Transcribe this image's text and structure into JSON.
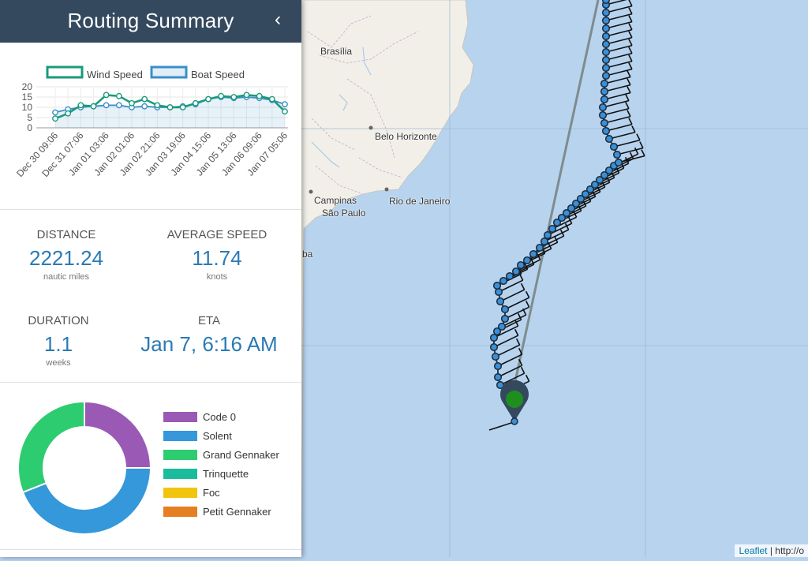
{
  "panel": {
    "title": "Routing Summary",
    "collapse_icon": "‹"
  },
  "chart_data": {
    "type": "line",
    "legend": [
      "Wind Speed",
      "Boat Speed"
    ],
    "series": [
      {
        "name": "Wind Speed",
        "color": "#1a9a7a",
        "values": [
          4.5,
          7,
          11,
          10.5,
          16,
          15.5,
          12,
          14,
          11,
          10,
          10,
          12,
          14,
          15.5,
          15,
          16,
          15.5,
          14,
          8
        ]
      },
      {
        "name": "Boat Speed",
        "color": "#3a8fc8",
        "values": [
          7.5,
          9,
          10,
          10.5,
          11,
          11,
          10,
          10.5,
          10,
          10,
          10.5,
          11.5,
          14,
          15,
          14.5,
          15,
          14.5,
          13.5,
          11.5
        ]
      }
    ],
    "x_tick_labels": [
      "Dec 30 09:06",
      "Dec 31 07:06",
      "Jan 01 03:06",
      "Jan 02 01:06",
      "Jan 02 21:06",
      "Jan 03 19:06",
      "Jan 04 15:06",
      "Jan 05 13:06",
      "Jan 06 09:06",
      "Jan 07 05:06"
    ],
    "y_ticks": [
      0,
      5,
      10,
      15,
      20
    ],
    "ylim": [
      0,
      20
    ],
    "grid": true,
    "legend_position": "top"
  },
  "stats": {
    "distance": {
      "label": "DISTANCE",
      "value": "2221.24",
      "unit": "nautic miles"
    },
    "average_speed": {
      "label": "AVERAGE SPEED",
      "value": "11.74",
      "unit": "knots"
    },
    "duration": {
      "label": "DURATION",
      "value": "1.1",
      "unit": "weeks"
    },
    "eta": {
      "label": "ETA",
      "value": "Jan 7, 6:16 AM"
    }
  },
  "sails": {
    "items": [
      {
        "label": "Code 0",
        "color": "#9b59b6",
        "value": 25
      },
      {
        "label": "Solent",
        "color": "#3498db",
        "value": 44
      },
      {
        "label": "Grand Gennaker",
        "color": "#2ecc71",
        "value": 31
      },
      {
        "label": "Trinquette",
        "color": "#1abc9c",
        "value": 0
      },
      {
        "label": "Foc",
        "color": "#f1c40f",
        "value": 0
      },
      {
        "label": "Petit Gennaker",
        "color": "#e67e22",
        "value": 0
      }
    ]
  },
  "map": {
    "cities": [
      "Brasília",
      "Belo Horizonte",
      "Campinas",
      "São Paulo",
      "Rio de Janeiro",
      "ba"
    ],
    "land_color": "#f2efe9",
    "water_color": "#b7d3ee",
    "route_color": "#3a8fd6",
    "attribution_leaflet": "Leaflet",
    "attribution_rest": "| http://o"
  }
}
